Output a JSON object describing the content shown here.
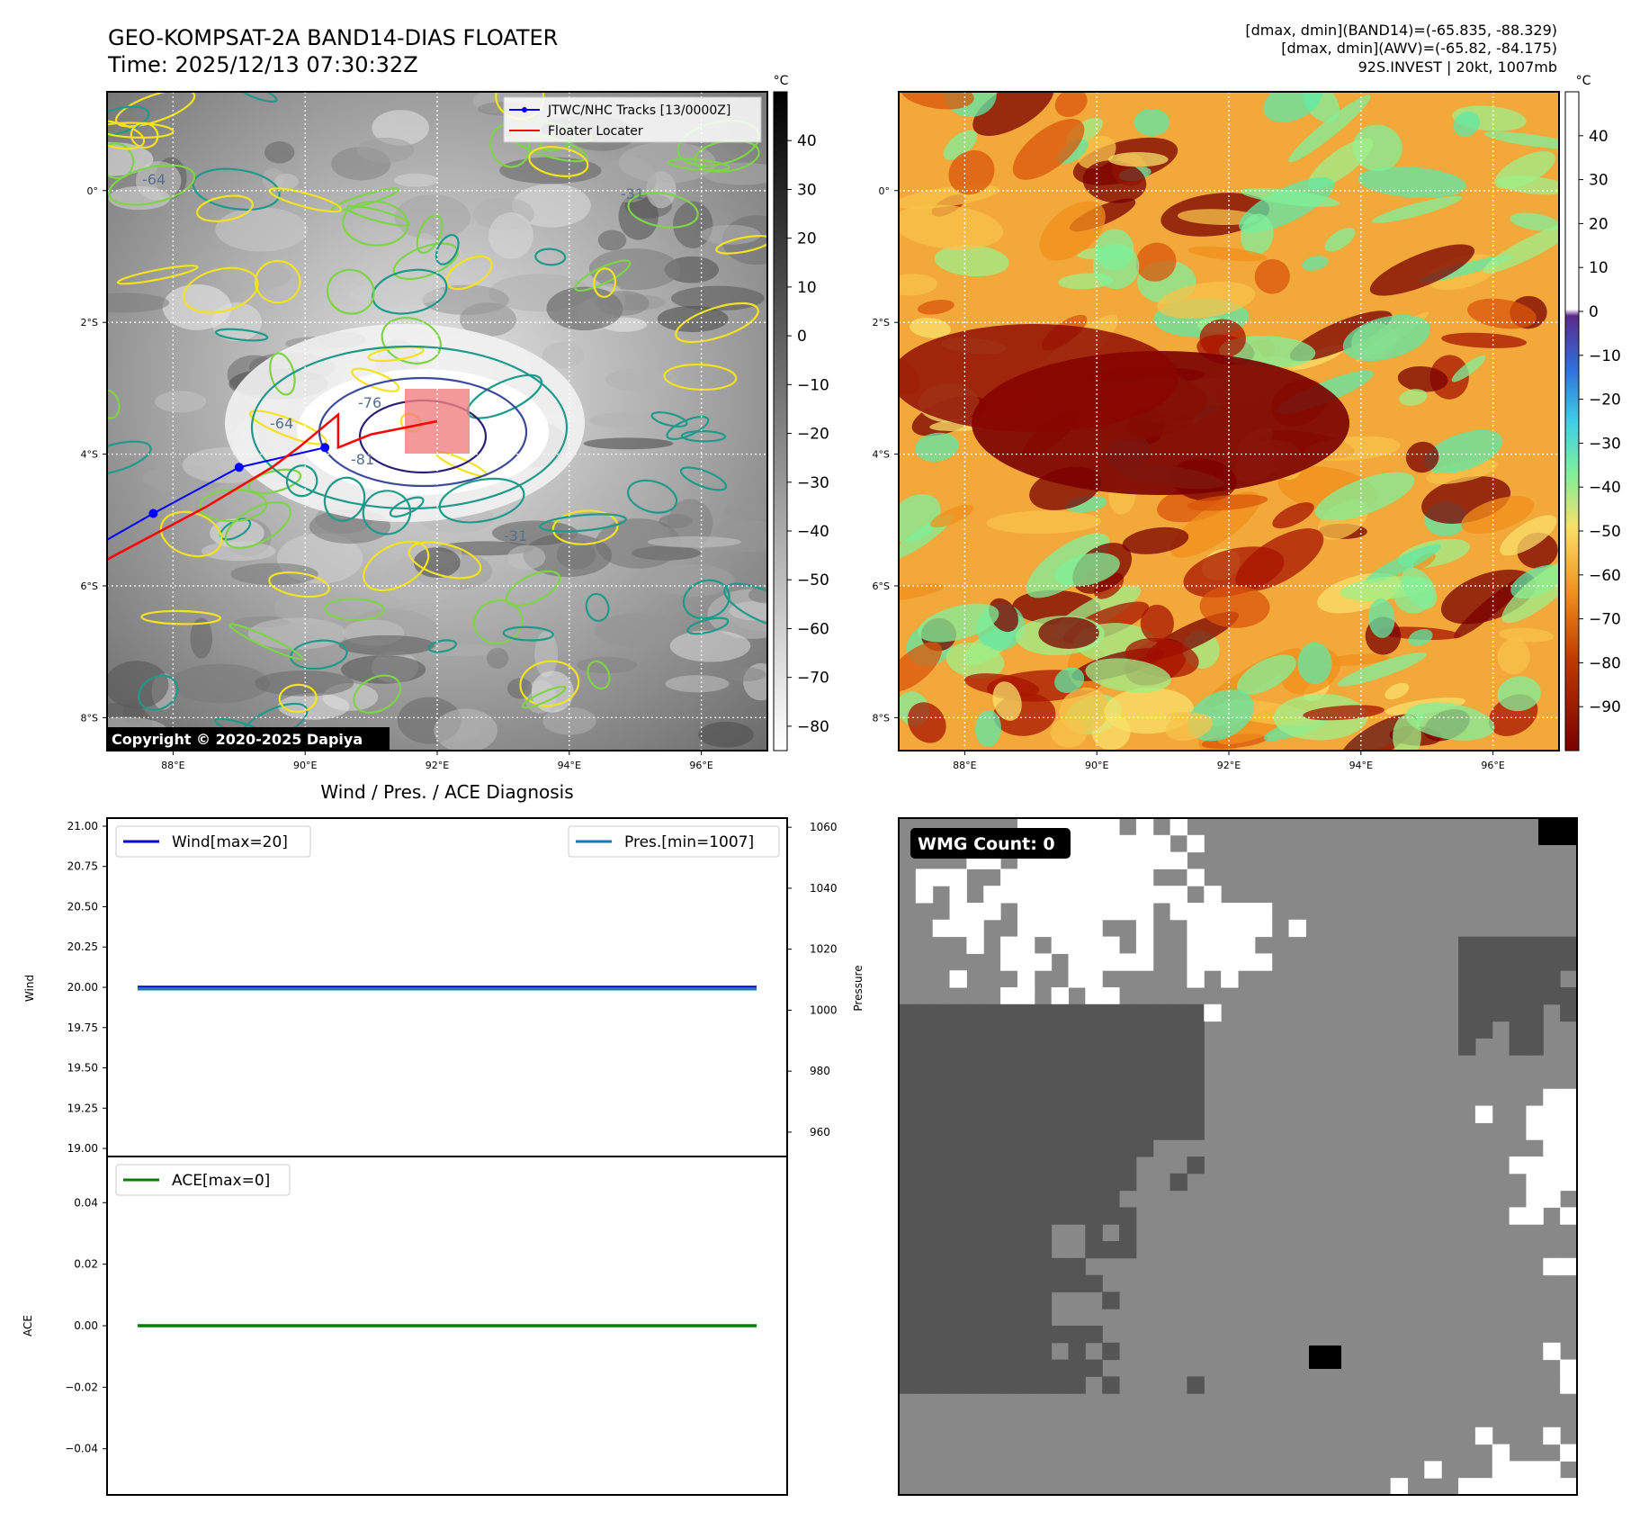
{
  "header": {
    "title": "GEO-KOMPSAT-2A BAND14-DIAS FLOATER",
    "time": "Time: 2025/12/13 07:30:32Z",
    "info_line1": "[dmax, dmin](BAND14)=(-65.835, -88.329)",
    "info_line2": "[dmax, dmin](AWV)=(-65.82, -84.175)",
    "info_line3": "92S.INVEST | 20kt, 1007mb"
  },
  "copyright": "Copyright © 2020-2025 Dapiya",
  "diagnosis_title": "Wind / Pres. / ACE Diagnosis",
  "wmg_label": "WMG Count: 0",
  "colors": {
    "track": "#0000ff",
    "locator": "#ff0000",
    "wind": "#0000cc",
    "pressure": "#1f77b4",
    "ace": "#008000",
    "locator_box": "#f08080"
  },
  "maps": {
    "lon_ticks": [
      "88°E",
      "90°E",
      "92°E",
      "94°E",
      "96°E"
    ],
    "lat_ticks": [
      "0°",
      "2°S",
      "4°S",
      "6°S",
      "8°S"
    ],
    "lon_range": [
      87,
      97
    ],
    "lat_range": [
      1.5,
      -8.5
    ],
    "contour_labels": [
      "-31",
      "-64",
      "-76",
      "-81"
    ],
    "ir_colorbar": {
      "unit": "°C",
      "ticks": [
        40,
        30,
        20,
        10,
        0,
        -10,
        -20,
        -30,
        -40,
        -50,
        -60,
        -70,
        -80
      ],
      "range": [
        -85,
        50
      ]
    },
    "awv_colorbar": {
      "unit": "°C",
      "ticks": [
        40,
        30,
        20,
        10,
        0,
        -10,
        -20,
        -30,
        -40,
        -50,
        -60,
        -70,
        -80,
        -90
      ],
      "range": [
        -100,
        50
      ]
    },
    "legend": [
      "JTWC/NHC Tracks [13/0000Z]",
      "Floater Locater"
    ]
  },
  "chart_data": [
    {
      "type": "line",
      "subject": "JTWC/NHC track positions",
      "series": [
        {
          "name": "JTWC/NHC Tracks [13/0000Z]",
          "x": [
            87.0,
            87.7,
            89.0,
            90.3
          ],
          "y": [
            -5.3,
            -4.9,
            -4.2,
            -3.9
          ]
        }
      ]
    },
    {
      "type": "line",
      "subject": "Floater locater path",
      "series": [
        {
          "name": "Floater Locater",
          "x": [
            87.0,
            88.5,
            89.5,
            89.9,
            90.5,
            90.5,
            91.0,
            92.0
          ],
          "y": [
            -5.6,
            -4.8,
            -4.2,
            -3.9,
            -3.4,
            -3.9,
            -3.7,
            -3.5
          ]
        }
      ]
    },
    {
      "type": "line",
      "subject": "Wind / Pres. diagnosis",
      "x": [
        0,
        1
      ],
      "series": [
        {
          "name": "Wind[max=20]",
          "values": [
            20,
            20
          ],
          "axis": "Wind"
        },
        {
          "name": "Pres.[min=1007]",
          "values": [
            1007,
            1007
          ],
          "axis": "Pressure"
        }
      ],
      "ylabel": "Wind",
      "ylim": [
        18.95,
        21.05
      ],
      "yticks": [
        "21.00",
        "20.75",
        "20.50",
        "20.25",
        "20.00",
        "19.75",
        "19.50",
        "19.25",
        "19.00"
      ],
      "y2label": "Pressure",
      "y2lim": [
        952,
        1063
      ],
      "y2ticks": [
        "1060",
        "1040",
        "1020",
        "1000",
        "980",
        "960"
      ],
      "legend": [
        "top-left",
        "top-right"
      ]
    },
    {
      "type": "line",
      "subject": "ACE diagnosis",
      "x": [
        0,
        1
      ],
      "series": [
        {
          "name": "ACE[max=0]",
          "values": [
            0,
            0
          ]
        }
      ],
      "ylabel": "ACE",
      "ylim": [
        -0.055,
        0.055
      ],
      "yticks": [
        "0.04",
        "0.02",
        "0.00",
        "−0.02",
        "−0.04"
      ],
      "legend": "top-left"
    }
  ]
}
